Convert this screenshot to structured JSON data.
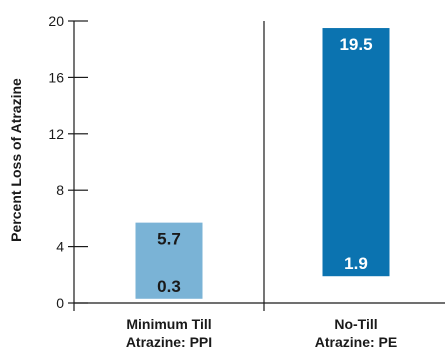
{
  "chart_data": {
    "type": "bar",
    "title": "",
    "ylabel": "Percent Loss of Atrazine",
    "xlabel": "",
    "ylim": [
      0,
      20
    ],
    "yticks": [
      0,
      4,
      8,
      12,
      16,
      20
    ],
    "grid": false,
    "categories": [
      {
        "line1": "Minimum Till",
        "line2": "Atrazine: PPI"
      },
      {
        "line1": "No-Till",
        "line2": "Atrazine: PE"
      }
    ],
    "bars": [
      {
        "low": 0.3,
        "high": 5.7,
        "low_label": "0.3",
        "high_label": "5.7",
        "color": "#7ab3d6",
        "text_color": "#1a1a1a"
      },
      {
        "low": 1.9,
        "high": 19.5,
        "low_label": "1.9",
        "high_label": "19.5",
        "color": "#0b73b0",
        "text_color": "#ffffff"
      }
    ],
    "colors": {
      "axis": "#1a1a1a"
    }
  }
}
